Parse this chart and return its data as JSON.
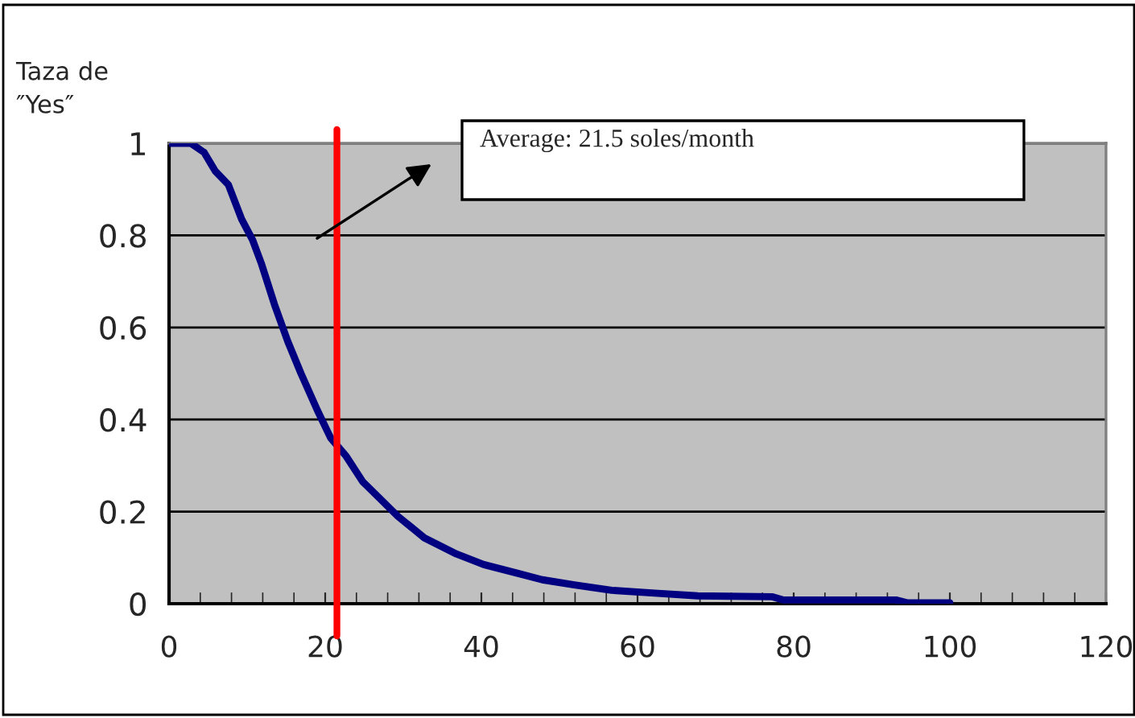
{
  "chart_data": {
    "type": "line",
    "ylabel": "Taza de\n″Yes″",
    "series": [
      {
        "color": "#000080",
        "x": [
          0,
          2.8,
          4.5,
          5.9,
          7.6,
          9.3,
          10.7,
          11.8,
          13.5,
          15.2,
          16.9,
          19,
          20.7,
          22.7,
          24.8,
          26.9,
          29.3,
          32.7,
          36.8,
          40.3,
          44.4,
          47.8,
          51.9,
          56.7,
          62.2,
          67.7,
          77.3,
          78.7,
          93.1,
          94.5,
          100
        ],
        "values": [
          1,
          1,
          0.98,
          0.94,
          0.91,
          0.835,
          0.79,
          0.74,
          0.65,
          0.57,
          0.5,
          0.42,
          0.36,
          0.32,
          0.265,
          0.23,
          0.19,
          0.143,
          0.108,
          0.085,
          0.067,
          0.052,
          0.041,
          0.029,
          0.023,
          0.017,
          0.015,
          0.008,
          0.008,
          0.002,
          0.002
        ]
      }
    ],
    "xlim": [
      0,
      120
    ],
    "xticks": [
      0,
      20,
      40,
      60,
      80,
      100,
      120
    ],
    "ylim": [
      0,
      1
    ],
    "yticks": [
      0,
      0.2,
      0.4,
      0.6,
      0.8,
      1
    ],
    "grid": "y",
    "marker": "none",
    "line_style": "solid",
    "ref_lines": [
      {
        "axis": "x",
        "value": 21.5,
        "color": "#ff0000"
      }
    ],
    "annotations": [
      "Average: 21.5 soles/month"
    ]
  }
}
